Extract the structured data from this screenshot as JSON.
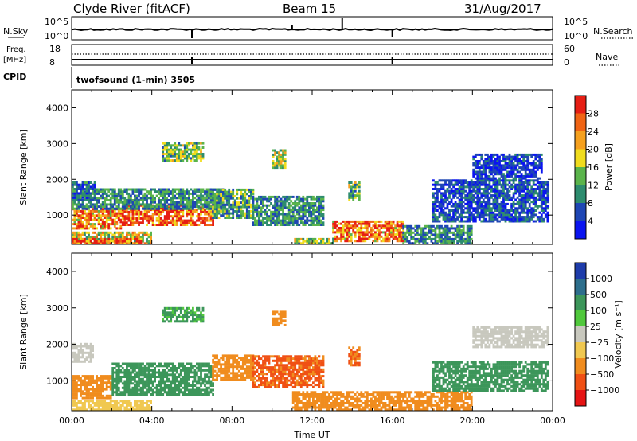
{
  "header": {
    "station": "Clyde River (fitACF)",
    "beam": "Beam 15",
    "date": "31/Aug/2017"
  },
  "top_panels": {
    "nsky_label": "N.Sky",
    "nsky_ticks": [
      "10^5",
      "10^0"
    ],
    "nsearch_label": "N.Search",
    "nsearch_ticks": [
      "10^5",
      "10^0"
    ],
    "freq_label_1": "Freq.",
    "freq_label_2": "[MHz]",
    "freq_ticks": [
      "18",
      "8"
    ],
    "nave_label": "Nave",
    "nave_ticks": [
      "60",
      "0"
    ],
    "cpid_label": "CPID",
    "cpid_value": "twofsound (1-min) 3505"
  },
  "chart_data": [
    {
      "type": "heatmap",
      "quantity": "Power",
      "ylabel": "Slant Range [km]",
      "xlabel": "",
      "ylim": [
        180,
        4500
      ],
      "yticks": [
        "1000",
        "2000",
        "3000",
        "4000"
      ],
      "xlim": [
        0,
        24
      ],
      "colorbar_label": "Power [dB]",
      "colorbar_ticks": [
        "4",
        "8",
        "12",
        "16",
        "20",
        "24",
        "28"
      ],
      "colorbar_colors": [
        "#0a14f0",
        "#1e46b4",
        "#2d8c6e",
        "#5ab44b",
        "#f0dc1e",
        "#f5a01e",
        "#f06414",
        "#e61e14"
      ],
      "regions": [
        {
          "t0": 0.0,
          "t1": 2.5,
          "r0": 600,
          "r1": 1150,
          "v": 24
        },
        {
          "t0": 2.5,
          "t1": 7.0,
          "r0": 700,
          "r1": 1250,
          "v": 28
        },
        {
          "t0": 0.0,
          "t1": 7.5,
          "r0": 1150,
          "r1": 1700,
          "v": 10
        },
        {
          "t0": 0.0,
          "t1": 1.2,
          "r0": 1400,
          "r1": 1900,
          "v": 8
        },
        {
          "t0": 0.0,
          "t1": 4.0,
          "r0": 180,
          "r1": 500,
          "v": 18
        },
        {
          "t0": 0.0,
          "t1": 3.5,
          "r0": 180,
          "r1": 320,
          "v": 28
        },
        {
          "t0": 7.0,
          "t1": 9.0,
          "r0": 900,
          "r1": 1700,
          "v": 12
        },
        {
          "t0": 9.0,
          "t1": 12.5,
          "r0": 700,
          "r1": 1500,
          "v": 10
        },
        {
          "t0": 10.0,
          "t1": 10.6,
          "r0": 2300,
          "r1": 2800,
          "v": 16
        },
        {
          "t0": 13.0,
          "t1": 16.5,
          "r0": 250,
          "r1": 800,
          "v": 26
        },
        {
          "t0": 11.0,
          "t1": 13.0,
          "r0": 180,
          "r1": 350,
          "v": 14
        },
        {
          "t0": 16.5,
          "t1": 20.0,
          "r0": 180,
          "r1": 700,
          "v": 10
        },
        {
          "t0": 18.0,
          "t1": 23.8,
          "r0": 800,
          "r1": 2000,
          "v": 6
        },
        {
          "t0": 20.0,
          "t1": 23.5,
          "r0": 2000,
          "r1": 2700,
          "v": 5
        },
        {
          "t0": 4.5,
          "t1": 6.5,
          "r0": 2500,
          "r1": 3000,
          "v": 14
        },
        {
          "t0": 13.8,
          "t1": 14.3,
          "r0": 1400,
          "r1": 1900,
          "v": 14
        }
      ]
    },
    {
      "type": "heatmap",
      "quantity": "Velocity",
      "ylabel": "Slant Range [km]",
      "xlabel": "Time UT",
      "ylim": [
        180,
        4500
      ],
      "yticks": [
        "1000",
        "2000",
        "3000",
        "4000"
      ],
      "xlim": [
        0,
        24
      ],
      "xticks": [
        "00:00",
        "04:00",
        "08:00",
        "12:00",
        "16:00",
        "20:00",
        "00:00"
      ],
      "colorbar_label": "Velocity [m s⁻¹]",
      "colorbar_ticks": [
        "1000",
        "500",
        "100",
        "25",
        "−25",
        "−100",
        "−500",
        "−1000"
      ],
      "colorbar_colors": [
        "#1e3caa",
        "#2d6e8c",
        "#3c965a",
        "#50c83c",
        "#c8c8be",
        "#f0c850",
        "#f08c1e",
        "#f05014",
        "#e61414"
      ],
      "regions": [
        {
          "t0": 0.0,
          "t1": 2.0,
          "r0": 500,
          "r1": 1150,
          "v": -200
        },
        {
          "t0": 2.0,
          "t1": 7.0,
          "r0": 600,
          "r1": 1500,
          "v": 200
        },
        {
          "t0": 0.0,
          "t1": 1.0,
          "r0": 1500,
          "r1": 2000,
          "v": 0
        },
        {
          "t0": 7.0,
          "t1": 9.0,
          "r0": 1000,
          "r1": 1700,
          "v": -200
        },
        {
          "t0": 9.0,
          "t1": 12.5,
          "r0": 800,
          "r1": 1700,
          "v": -600
        },
        {
          "t0": 10.0,
          "t1": 10.6,
          "r0": 2500,
          "r1": 2900,
          "v": -300
        },
        {
          "t0": 13.8,
          "t1": 14.3,
          "r0": 1400,
          "r1": 1900,
          "v": -500
        },
        {
          "t0": 11.0,
          "t1": 20.0,
          "r0": 180,
          "r1": 700,
          "v": -150
        },
        {
          "t0": 0.0,
          "t1": 4.0,
          "r0": 180,
          "r1": 450,
          "v": -60
        },
        {
          "t0": 18.0,
          "t1": 23.8,
          "r0": 700,
          "r1": 1500,
          "v": 150
        },
        {
          "t0": 20.0,
          "t1": 23.8,
          "r0": 1900,
          "r1": 2500,
          "v": 0
        },
        {
          "t0": 4.5,
          "t1": 6.5,
          "r0": 2600,
          "r1": 3000,
          "v": 120
        }
      ]
    }
  ]
}
